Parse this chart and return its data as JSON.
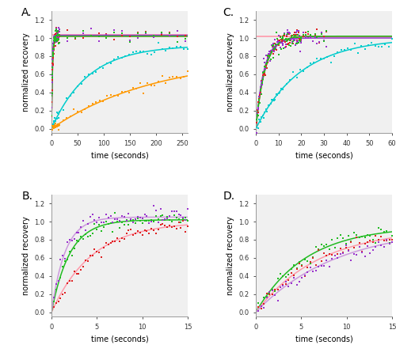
{
  "panel_labels": [
    "A.",
    "B.",
    "C.",
    "D."
  ],
  "colors": {
    "cyan": "#00CCCC",
    "red": "#DD2222",
    "purple": "#9933CC",
    "green": "#22BB22",
    "orange": "#FF9900",
    "pink": "#FF99AA"
  },
  "bg_color": "#F0F0F0",
  "panel_A": {
    "xlim": [
      0,
      260
    ],
    "ylim": [
      -0.05,
      1.3
    ],
    "xticks": [
      0,
      50,
      100,
      150,
      200,
      250
    ],
    "yticks": [
      0.0,
      0.2,
      0.4,
      0.6,
      0.8,
      1.0,
      1.2
    ],
    "xlabel": "time (seconds)",
    "ylabel": "normalized recovery"
  },
  "panel_B": {
    "xlim": [
      0,
      15
    ],
    "ylim": [
      -0.05,
      1.3
    ],
    "xticks": [
      0,
      5,
      10,
      15
    ],
    "yticks": [
      0.0,
      0.2,
      0.4,
      0.6,
      0.8,
      1.0,
      1.2
    ],
    "xlabel": "time (seconds)",
    "ylabel": "normalized recovery"
  },
  "panel_C": {
    "xlim": [
      0,
      60
    ],
    "ylim": [
      -0.05,
      1.3
    ],
    "xticks": [
      0,
      10,
      20,
      30,
      40,
      50,
      60
    ],
    "yticks": [
      0.0,
      0.2,
      0.4,
      0.6,
      0.8,
      1.0,
      1.2
    ],
    "xlabel": "time (seconds)",
    "ylabel": "normalized recovery"
  },
  "panel_D": {
    "xlim": [
      0,
      15
    ],
    "ylim": [
      -0.05,
      1.3
    ],
    "xticks": [
      0,
      5,
      10,
      15
    ],
    "yticks": [
      0.0,
      0.2,
      0.4,
      0.6,
      0.8,
      1.0,
      1.2
    ],
    "xlabel": "time (seconds)",
    "ylabel": "normalized recovery"
  }
}
